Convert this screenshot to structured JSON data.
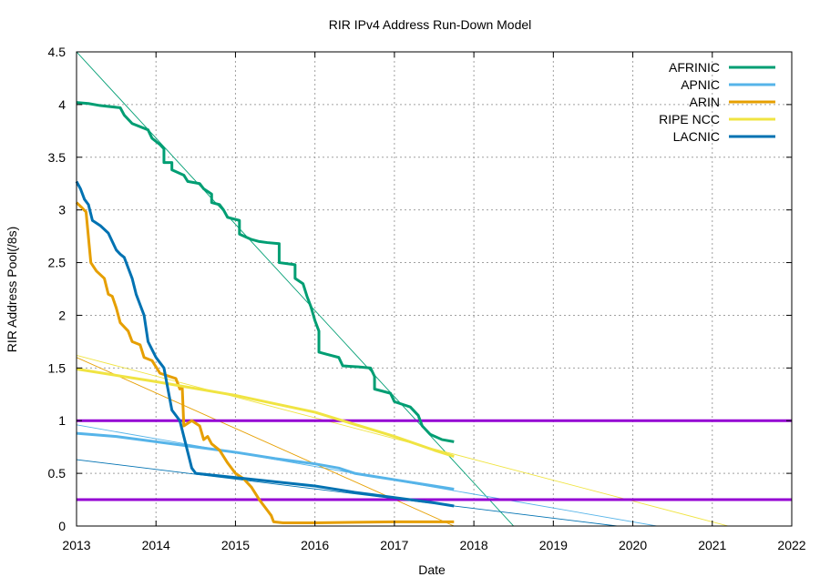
{
  "chart_data": {
    "type": "line",
    "title": "RIR IPv4 Address Run-Down Model",
    "xlabel": "Date",
    "ylabel": "RIR Address Pool(/8s)",
    "xlim": [
      2013,
      2022
    ],
    "ylim": [
      0,
      4.5
    ],
    "x_ticks": [
      "2013",
      "2014",
      "2015",
      "2016",
      "2017",
      "2018",
      "2019",
      "2020",
      "2021",
      "2022"
    ],
    "y_ticks": [
      "0",
      "0.5",
      "1",
      "1.5",
      "2",
      "2.5",
      "3",
      "3.5",
      "4",
      "4.5"
    ],
    "grid": true,
    "legend_position": "top-right",
    "series": [
      {
        "name": "AFRINIC",
        "color": "#009e73",
        "points": [
          [
            2013.0,
            4.02
          ],
          [
            2013.15,
            4.01
          ],
          [
            2013.3,
            3.99
          ],
          [
            2013.55,
            3.97
          ],
          [
            2013.6,
            3.9
          ],
          [
            2013.7,
            3.82
          ],
          [
            2013.9,
            3.76
          ],
          [
            2013.95,
            3.68
          ],
          [
            2014.05,
            3.62
          ],
          [
            2014.1,
            3.58
          ],
          [
            2014.1,
            3.45
          ],
          [
            2014.2,
            3.45
          ],
          [
            2014.2,
            3.38
          ],
          [
            2014.35,
            3.33
          ],
          [
            2014.4,
            3.27
          ],
          [
            2014.55,
            3.25
          ],
          [
            2014.6,
            3.2
          ],
          [
            2014.7,
            3.15
          ],
          [
            2014.7,
            3.07
          ],
          [
            2014.8,
            3.05
          ],
          [
            2014.85,
            3.0
          ],
          [
            2014.9,
            2.93
          ],
          [
            2015.05,
            2.9
          ],
          [
            2015.05,
            2.77
          ],
          [
            2015.2,
            2.72
          ],
          [
            2015.3,
            2.7
          ],
          [
            2015.4,
            2.69
          ],
          [
            2015.55,
            2.68
          ],
          [
            2015.55,
            2.5
          ],
          [
            2015.75,
            2.48
          ],
          [
            2015.75,
            2.35
          ],
          [
            2015.85,
            2.3
          ],
          [
            2015.9,
            2.18
          ],
          [
            2015.95,
            2.08
          ],
          [
            2016.0,
            1.95
          ],
          [
            2016.05,
            1.85
          ],
          [
            2016.05,
            1.65
          ],
          [
            2016.15,
            1.63
          ],
          [
            2016.3,
            1.6
          ],
          [
            2016.35,
            1.52
          ],
          [
            2016.55,
            1.51
          ],
          [
            2016.7,
            1.5
          ],
          [
            2016.75,
            1.42
          ],
          [
            2016.75,
            1.3
          ],
          [
            2016.95,
            1.26
          ],
          [
            2017.0,
            1.18
          ],
          [
            2017.2,
            1.13
          ],
          [
            2017.3,
            1.05
          ],
          [
            2017.35,
            0.95
          ],
          [
            2017.45,
            0.87
          ],
          [
            2017.6,
            0.82
          ],
          [
            2017.75,
            0.8
          ]
        ]
      },
      {
        "name": "APNIC",
        "color": "#56b4e9",
        "points": [
          [
            2013.0,
            0.88
          ],
          [
            2013.5,
            0.85
          ],
          [
            2014.0,
            0.8
          ],
          [
            2014.5,
            0.75
          ],
          [
            2015.0,
            0.7
          ],
          [
            2015.5,
            0.64
          ],
          [
            2016.0,
            0.59
          ],
          [
            2016.3,
            0.55
          ],
          [
            2016.5,
            0.5
          ],
          [
            2016.75,
            0.47
          ],
          [
            2017.0,
            0.44
          ],
          [
            2017.5,
            0.38
          ],
          [
            2017.75,
            0.35
          ]
        ]
      },
      {
        "name": "ARIN",
        "color": "#e69f00",
        "points": [
          [
            2013.0,
            3.07
          ],
          [
            2013.07,
            3.02
          ],
          [
            2013.12,
            2.98
          ],
          [
            2013.18,
            2.5
          ],
          [
            2013.25,
            2.42
          ],
          [
            2013.35,
            2.35
          ],
          [
            2013.4,
            2.2
          ],
          [
            2013.45,
            2.18
          ],
          [
            2013.5,
            2.07
          ],
          [
            2013.55,
            1.93
          ],
          [
            2013.65,
            1.85
          ],
          [
            2013.7,
            1.75
          ],
          [
            2013.8,
            1.72
          ],
          [
            2013.85,
            1.6
          ],
          [
            2013.95,
            1.57
          ],
          [
            2014.05,
            1.45
          ],
          [
            2014.25,
            1.4
          ],
          [
            2014.3,
            1.3
          ],
          [
            2014.33,
            1.32
          ],
          [
            2014.35,
            0.95
          ],
          [
            2014.45,
            1.0
          ],
          [
            2014.55,
            0.95
          ],
          [
            2014.6,
            0.82
          ],
          [
            2014.65,
            0.85
          ],
          [
            2014.7,
            0.78
          ],
          [
            2014.8,
            0.72
          ],
          [
            2014.9,
            0.6
          ],
          [
            2015.0,
            0.5
          ],
          [
            2015.1,
            0.45
          ],
          [
            2015.2,
            0.37
          ],
          [
            2015.3,
            0.25
          ],
          [
            2015.4,
            0.15
          ],
          [
            2015.45,
            0.1
          ],
          [
            2015.48,
            0.04
          ],
          [
            2015.6,
            0.03
          ],
          [
            2016.0,
            0.03
          ],
          [
            2017.0,
            0.04
          ],
          [
            2017.75,
            0.04
          ]
        ]
      },
      {
        "name": "RIPE NCC",
        "color": "#f0e442",
        "points": [
          [
            2013.0,
            1.49
          ],
          [
            2014.0,
            1.37
          ],
          [
            2015.0,
            1.24
          ],
          [
            2016.0,
            1.08
          ],
          [
            2017.0,
            0.85
          ],
          [
            2017.5,
            0.72
          ],
          [
            2017.75,
            0.66
          ]
        ]
      },
      {
        "name": "LACNIC",
        "color": "#0072b2",
        "points": [
          [
            2013.0,
            3.27
          ],
          [
            2013.05,
            3.2
          ],
          [
            2013.1,
            3.1
          ],
          [
            2013.15,
            3.05
          ],
          [
            2013.2,
            2.9
          ],
          [
            2013.3,
            2.85
          ],
          [
            2013.4,
            2.78
          ],
          [
            2013.45,
            2.7
          ],
          [
            2013.5,
            2.62
          ],
          [
            2013.55,
            2.58
          ],
          [
            2013.6,
            2.55
          ],
          [
            2013.65,
            2.45
          ],
          [
            2013.7,
            2.35
          ],
          [
            2013.75,
            2.2
          ],
          [
            2013.8,
            2.1
          ],
          [
            2013.85,
            2.0
          ],
          [
            2013.9,
            1.75
          ],
          [
            2014.0,
            1.6
          ],
          [
            2014.05,
            1.55
          ],
          [
            2014.1,
            1.5
          ],
          [
            2014.15,
            1.3
          ],
          [
            2014.2,
            1.1
          ],
          [
            2014.3,
            1.0
          ],
          [
            2014.35,
            0.85
          ],
          [
            2014.4,
            0.7
          ],
          [
            2014.45,
            0.55
          ],
          [
            2014.5,
            0.5
          ],
          [
            2015.0,
            0.46
          ],
          [
            2015.5,
            0.42
          ],
          [
            2016.0,
            0.38
          ],
          [
            2016.5,
            0.32
          ],
          [
            2017.0,
            0.27
          ],
          [
            2017.5,
            0.22
          ],
          [
            2017.75,
            0.19
          ]
        ]
      }
    ],
    "trend_lines": [
      {
        "name": "AFRINIC trend",
        "color": "#009e73",
        "points": [
          [
            2013.0,
            4.5
          ],
          [
            2018.5,
            0
          ]
        ]
      },
      {
        "name": "APNIC trend",
        "color": "#56b4e9",
        "points": [
          [
            2013.0,
            0.96
          ],
          [
            2020.3,
            0
          ]
        ]
      },
      {
        "name": "ARIN trend",
        "color": "#e69f00",
        "points": [
          [
            2013.0,
            1.6
          ],
          [
            2017.75,
            0
          ]
        ]
      },
      {
        "name": "RIPE NCC trend",
        "color": "#f0e442",
        "points": [
          [
            2013.0,
            1.62
          ],
          [
            2021.2,
            0
          ]
        ]
      },
      {
        "name": "LACNIC trend",
        "color": "#0072b2",
        "points": [
          [
            2013.0,
            0.63
          ],
          [
            2019.8,
            0
          ]
        ]
      }
    ],
    "threshold_lines": [
      {
        "value": 1.0,
        "color": "#9400d3"
      },
      {
        "value": 0.25,
        "color": "#9400d3"
      }
    ]
  }
}
